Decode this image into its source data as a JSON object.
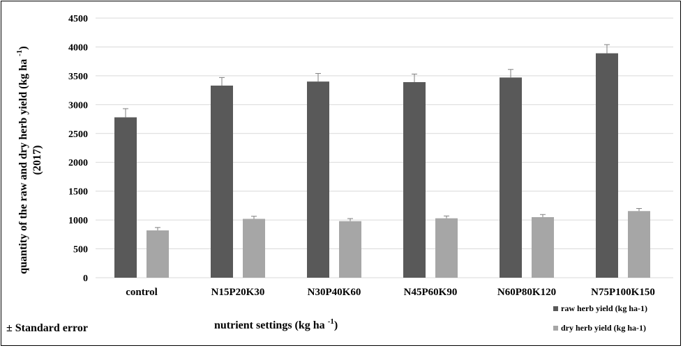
{
  "chart_data": {
    "type": "bar",
    "title": "",
    "ylabel_line1": "quantity of the raw and dry herb yield",
    "ylabel_unit": "(kg ha ",
    "ylabel_unit_sup": "-1",
    "ylabel_unit_close": ")",
    "ylabel_line2": "(2017)",
    "xlabel": "nutrient settings (kg ha ",
    "xlabel_sup": "-1",
    "xlabel_close": ")",
    "note": "± Standard error",
    "ylim": [
      0,
      4500
    ],
    "yticks": [
      0,
      500,
      1000,
      1500,
      2000,
      2500,
      3000,
      3500,
      4000,
      4500
    ],
    "grid": true,
    "legend_position": "bottom-right",
    "categories": [
      "control",
      "N15P20K30",
      "N30P40K60",
      "N45P60K90",
      "N60P80K120",
      "N75P100K150"
    ],
    "series": [
      {
        "name": "raw herb yield (kg ha-1)",
        "color": "#595959",
        "values": [
          2780,
          3330,
          3400,
          3390,
          3470,
          3890
        ],
        "errors": [
          150,
          140,
          140,
          140,
          140,
          150
        ]
      },
      {
        "name": "dry herb yield (kg ha-1)",
        "color": "#a6a6a6",
        "values": [
          820,
          1020,
          980,
          1030,
          1050,
          1155
        ],
        "errors": [
          50,
          45,
          45,
          40,
          45,
          45
        ]
      }
    ]
  }
}
